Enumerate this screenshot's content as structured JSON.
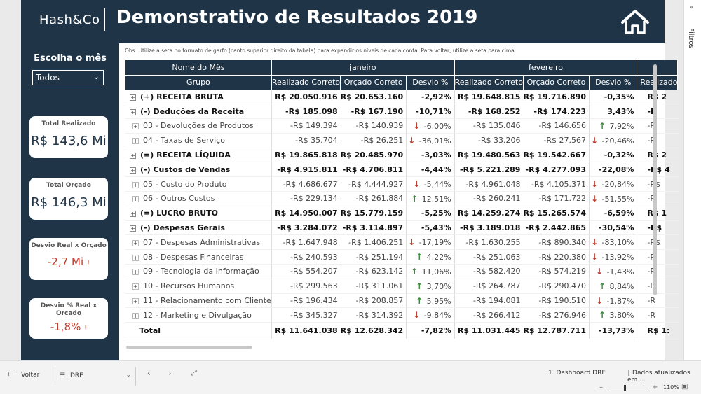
{
  "header": {
    "brand": "Hash&Co",
    "title": "Demonstrativo de Resultados 2019"
  },
  "sidebar": {
    "month_label": "Escolha o mês",
    "month_value": "Todos",
    "kpis": [
      {
        "label": "Total Realizado",
        "value": "R$ 143,6 Mi"
      },
      {
        "label": "Total Orçado",
        "value": "R$ 146,3 Mi"
      },
      {
        "label": "Desvio Real x Orçado",
        "value": "-2,7 Mi"
      },
      {
        "label": "Desvio % Real x Orçado",
        "value": "-1,8%"
      }
    ],
    "warn": "!"
  },
  "note": "Obs: Utilize a seta no formato de garfo (canto superior direito da tabela) para expandir os níveis de cada conta. Para voltar, utilize a seta para cima.",
  "table": {
    "row_header_top": "Nome do Mês",
    "row_header": "Grupo",
    "months": [
      "janeiro",
      "fevereiro"
    ],
    "columns": [
      "Realizado Correto",
      "Orçado Correto",
      "Desvio %",
      "Realizado Correto",
      "Orçado Correto",
      "Desvio %",
      "Realizado"
    ],
    "rows": [
      {
        "name": "(+) RECEITA BRUTA",
        "level": "top",
        "cells": [
          "R$ 20.050.916",
          "R$ 20.653.160",
          "-2,92%",
          "R$ 19.648.815",
          "R$ 19.716.890",
          "-0,35%",
          "R$ 2"
        ],
        "arrows": [
          "",
          ""
        ]
      },
      {
        "name": "(-) Deduções da Receita",
        "level": "top",
        "cells": [
          "-R$ 185.098",
          "-R$ 167.190",
          "-10,71%",
          "-R$ 168.252",
          "-R$ 174.223",
          "3,43%",
          "-R"
        ],
        "arrows": [
          "",
          ""
        ]
      },
      {
        "name": "03 - Devoluções de Produtos",
        "level": "sub",
        "cells": [
          "-R$ 149.394",
          "-R$ 140.939",
          "-6,00%",
          "-R$ 135.046",
          "-R$ 146.656",
          "7,92%",
          "-R"
        ],
        "arrows": [
          "down",
          "up"
        ]
      },
      {
        "name": "04 - Taxas de Serviço",
        "level": "sub",
        "cells": [
          "-R$ 35.704",
          "-R$ 26.251",
          "-36,01%",
          "-R$ 33.206",
          "-R$ 27.567",
          "-20,46%",
          "-R"
        ],
        "arrows": [
          "down",
          "down"
        ]
      },
      {
        "name": "(=) RECEITA LÍQUIDA",
        "level": "top",
        "cells": [
          "R$ 19.865.818",
          "R$ 20.485.970",
          "-3,03%",
          "R$ 19.480.563",
          "R$ 19.542.667",
          "-0,32%",
          "R$ 2"
        ],
        "arrows": [
          "",
          ""
        ]
      },
      {
        "name": "(-) Custos de Vendas",
        "level": "top",
        "cells": [
          "-R$ 4.915.811",
          "-R$ 4.706.811",
          "-4,44%",
          "-R$ 5.221.289",
          "-R$ 4.277.093",
          "-22,08%",
          "-R$ 4"
        ],
        "arrows": [
          "",
          ""
        ]
      },
      {
        "name": "05 - Custo do Produto",
        "level": "sub",
        "cells": [
          "-R$ 4.686.677",
          "-R$ 4.444.927",
          "-5,44%",
          "-R$ 4.961.048",
          "-R$ 4.105.371",
          "-20,84%",
          "-R$"
        ],
        "arrows": [
          "down",
          "down"
        ]
      },
      {
        "name": "06 - Outros Custos",
        "level": "sub",
        "cells": [
          "-R$ 229.134",
          "-R$ 261.884",
          "12,51%",
          "-R$ 260.241",
          "-R$ 171.722",
          "-51,55%",
          "-R"
        ],
        "arrows": [
          "up",
          "down"
        ]
      },
      {
        "name": "(=) LUCRO BRUTO",
        "level": "top",
        "cells": [
          "R$ 14.950.007",
          "R$ 15.779.159",
          "-5,25%",
          "R$ 14.259.274",
          "R$ 15.265.574",
          "-6,59%",
          "R$ 1"
        ],
        "arrows": [
          "",
          ""
        ]
      },
      {
        "name": "(-) Despesas Gerais",
        "level": "top",
        "cells": [
          "-R$ 3.284.072",
          "-R$ 3.114.897",
          "-5,43%",
          "-R$ 3.189.018",
          "-R$ 2.442.865",
          "-30,54%",
          "-R$"
        ],
        "arrows": [
          "",
          ""
        ]
      },
      {
        "name": "07 - Despesas Administrativas",
        "level": "sub",
        "cells": [
          "-R$ 1.647.948",
          "-R$ 1.406.251",
          "-17,19%",
          "-R$ 1.630.255",
          "-R$ 890.340",
          "-83,10%",
          "-R$"
        ],
        "arrows": [
          "down",
          "down"
        ]
      },
      {
        "name": "08 - Despesas Financeiras",
        "level": "sub",
        "cells": [
          "-R$ 240.593",
          "-R$ 251.194",
          "4,22%",
          "-R$ 251.063",
          "-R$ 220.380",
          "-13,92%",
          "-R"
        ],
        "arrows": [
          "up",
          "down"
        ]
      },
      {
        "name": "09 - Tecnologia da Informação",
        "level": "sub",
        "cells": [
          "-R$ 554.207",
          "-R$ 623.142",
          "11,06%",
          "-R$ 582.420",
          "-R$ 574.219",
          "-1,43%",
          "-R"
        ],
        "arrows": [
          "up",
          "down"
        ]
      },
      {
        "name": "10 - Recursos Humanos",
        "level": "sub",
        "cells": [
          "-R$ 299.563",
          "-R$ 311.061",
          "3,70%",
          "-R$ 264.787",
          "-R$ 290.470",
          "8,84%",
          "-R"
        ],
        "arrows": [
          "up",
          "up"
        ]
      },
      {
        "name": "11 - Relacionamento com Cliente",
        "level": "sub",
        "cells": [
          "-R$ 196.434",
          "-R$ 208.857",
          "5,95%",
          "-R$ 194.081",
          "-R$ 190.510",
          "-1,87%",
          "-R"
        ],
        "arrows": [
          "up",
          "down"
        ]
      },
      {
        "name": "12 - Marketing e Divulgação",
        "level": "sub",
        "cells": [
          "-R$ 345.327",
          "-R$ 314.392",
          "-9,84%",
          "-R$ 266.412",
          "-R$ 276.946",
          "3,80%",
          "-R"
        ],
        "arrows": [
          "down",
          "up"
        ]
      }
    ],
    "total": {
      "name": "Total",
      "cells": [
        "R$ 11.641.038",
        "R$ 12.628.342",
        "-7,82%",
        "R$ 11.031.445",
        "R$ 12.787.711",
        "-13,73%",
        "R$ 1:"
      ]
    }
  },
  "filters": {
    "label": "Filtros"
  },
  "bottombar": {
    "back_label": "Voltar",
    "page_label": "DRE",
    "page_tab": "1. Dashboard DRE",
    "status": "Dados atualizados em ...",
    "zoom": "110%"
  },
  "icons": {
    "home": "home-icon",
    "back": "arrow-left-icon",
    "page": "page-list-icon"
  },
  "colors": {
    "navy": "#1f3447",
    "up": "#3a8a3a",
    "down": "#c0392b"
  }
}
